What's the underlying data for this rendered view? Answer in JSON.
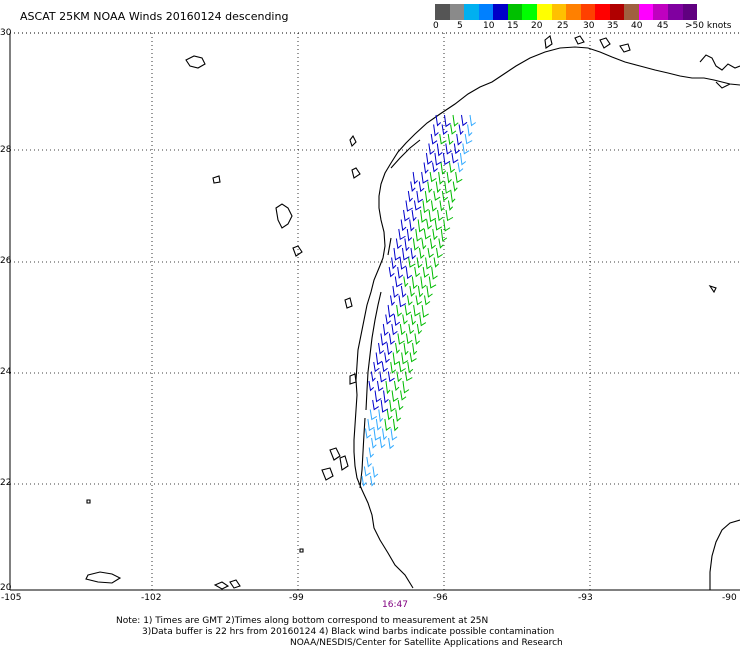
{
  "title": "ASCAT 25KM NOAA Winds 20160124 descending",
  "legend": {
    "labels": [
      "0",
      "5",
      "10",
      "15",
      "20",
      "25",
      "30",
      "35",
      "40",
      "45",
      ">50 knots"
    ],
    "colors": [
      "#555555",
      "#8a8a8a",
      "#00b0f0",
      "#0080ff",
      "#0000c8",
      "#00c000",
      "#00ff00",
      "#ffff00",
      "#ffc000",
      "#ff8000",
      "#ff4000",
      "#ff0000",
      "#b00000",
      "#a06040",
      "#ff00ff",
      "#c000c0",
      "#8000a0",
      "#600080"
    ]
  },
  "axes": {
    "x_labels": [
      "-105",
      "-102",
      "-99",
      "-96",
      "-93",
      "-90"
    ],
    "y_labels": [
      "30",
      "28",
      "26",
      "24",
      "22",
      "20"
    ]
  },
  "pass_time": "16:47",
  "notes": {
    "line1": "Note: 1) Times are GMT 2)Times along bottom correspond to measurement at 25N",
    "line2": "3)Data buffer is 22 hrs from 20160124 4) Black wind barbs indicate possible contamination",
    "line3": "NOAA/NESDIS/Center for Satellite Applications and Research"
  },
  "barb_colors": {
    "light": "#33aaff",
    "blue": "#0000cc",
    "green": "#00bb00"
  }
}
